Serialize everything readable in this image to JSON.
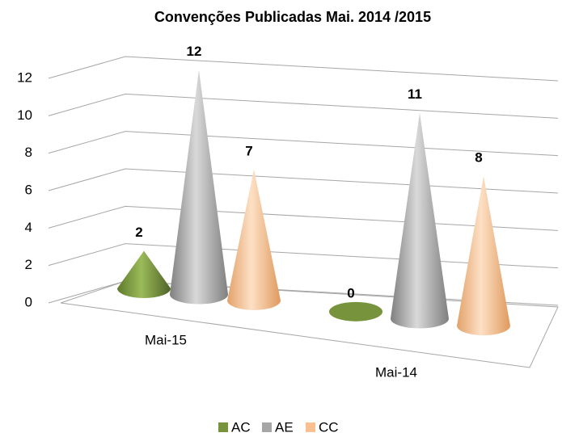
{
  "chart_data": {
    "type": "cone3d",
    "title": "Convenções Publicadas Mai. 2014 /2015",
    "categories": [
      "Mai-15",
      "Mai-14"
    ],
    "series": [
      {
        "name": "AC",
        "color": "#77933c",
        "values": [
          2,
          0
        ]
      },
      {
        "name": "AE",
        "color": "#a6a6a6",
        "values": [
          12,
          11
        ]
      },
      {
        "name": "CC",
        "color": "#fac090",
        "values": [
          7,
          8
        ]
      }
    ],
    "ylim": [
      0,
      12
    ],
    "yticks": [
      0,
      2,
      4,
      6,
      8,
      10,
      12
    ],
    "grid": true,
    "legend": "bottom"
  }
}
